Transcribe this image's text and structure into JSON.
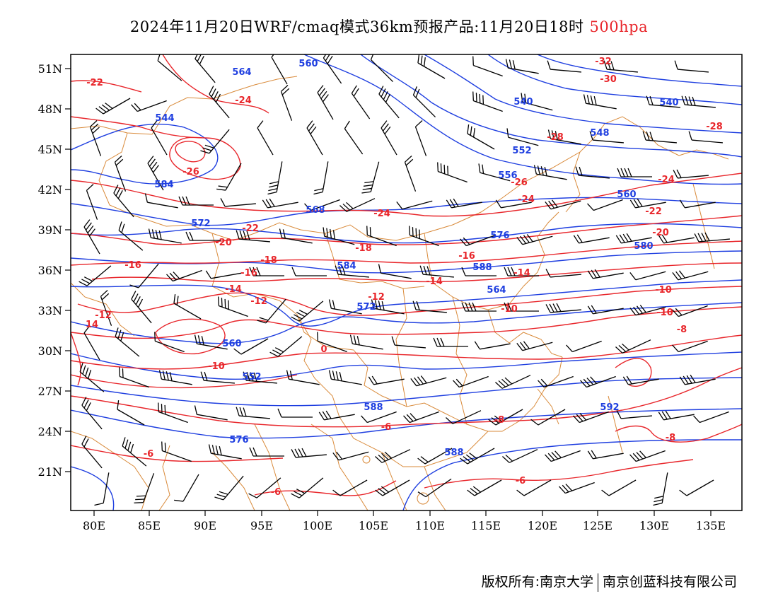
{
  "title": {
    "text": "2024年11月20日WRF/cmaq模式36km预报产品:11月20日18时",
    "level": "500hpa"
  },
  "footer": {
    "left": "版权所有:南京大学",
    "right": "南京创蓝科技有限公司"
  },
  "axes": {
    "lon_labels": [
      "80E",
      "85E",
      "90E",
      "95E",
      "100E",
      "105E",
      "110E",
      "115E",
      "120E",
      "125E",
      "130E",
      "135E"
    ],
    "lat_labels": [
      "51N",
      "48N",
      "45N",
      "42N",
      "39N",
      "36N",
      "33N",
      "30N",
      "27N",
      "24N",
      "21N"
    ]
  },
  "colors": {
    "geopotential": "#1f3fe0",
    "temperature": "#e8262b",
    "boundaries": "#d98a3a",
    "wind": "#000000",
    "level_title": "#e8262b"
  },
  "contours": {
    "geopotential_labels": [
      "564",
      "560",
      "540",
      "548",
      "552",
      "556",
      "544",
      "540",
      "584",
      "560",
      "568",
      "572",
      "576",
      "580",
      "584",
      "588",
      "564",
      "572",
      "560",
      "552",
      "588",
      "592",
      "576",
      "588"
    ],
    "temperature_labels": [
      "-32",
      "-30",
      "-22",
      "-24",
      "-28",
      "-26",
      "-26",
      "-24",
      "-28",
      "-24",
      "-24",
      "-22",
      "-22",
      "-20",
      "-20",
      "-18",
      "-16",
      "-16",
      "-18",
      "-16",
      "-14",
      "-14",
      "-14",
      "-12",
      "-10",
      "-12",
      "-12",
      "-10",
      "-10",
      "-10",
      "-8",
      "-8",
      "-8",
      "-6",
      "-6",
      "-6",
      "-6",
      "14",
      "0"
    ]
  },
  "map": {
    "type": "weather-map",
    "variables": [
      "geopotential height (blue contours)",
      "temperature (red contours)",
      "wind barbs (black)"
    ],
    "region": "East Asia"
  }
}
